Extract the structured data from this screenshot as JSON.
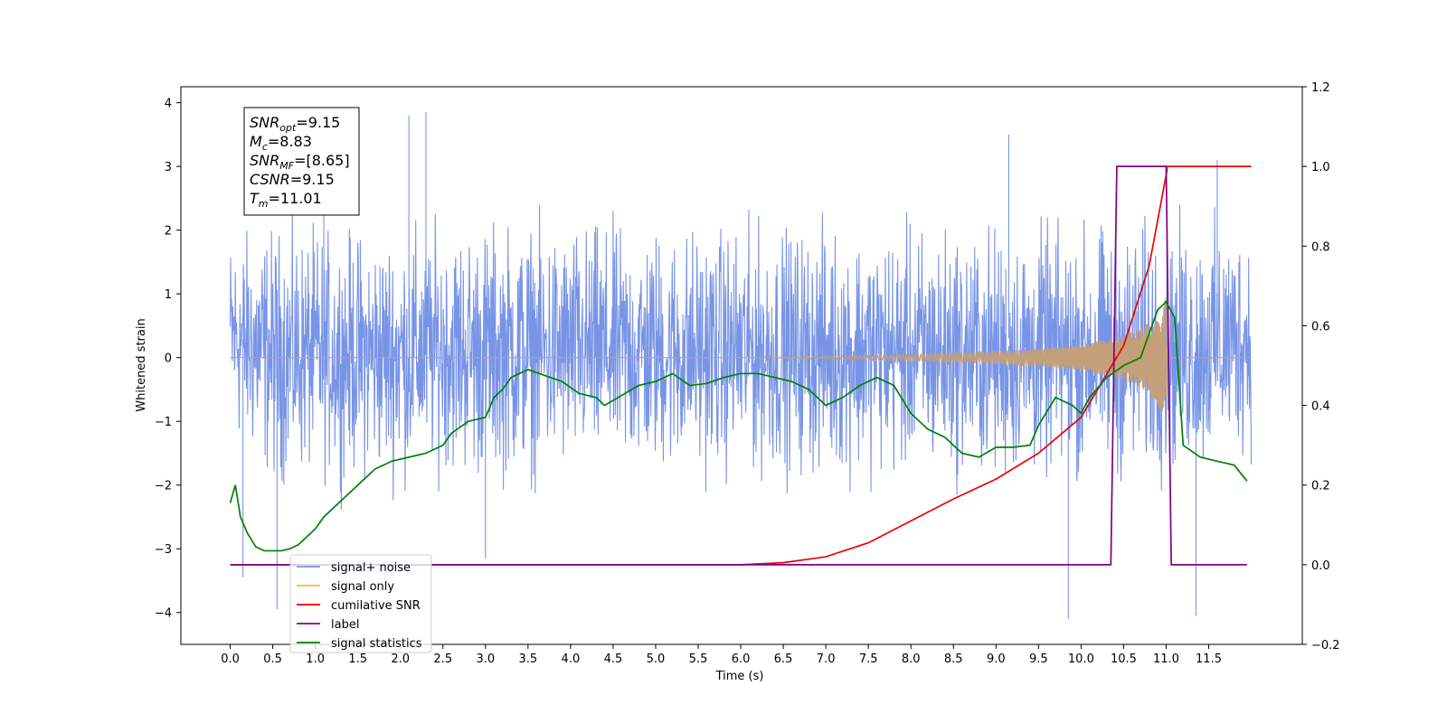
{
  "chart_data": {
    "type": "line",
    "xlabel": "Time (s)",
    "ylabel": "Whitened strain",
    "xlim": [
      -0.58,
      12.6
    ],
    "ylim": [
      -4.5,
      4.25
    ],
    "y2lim": [
      -0.2,
      1.2
    ],
    "xticks": [
      "0.0",
      "0.5",
      "1.0",
      "1.5",
      "2.0",
      "2.5",
      "3.0",
      "3.5",
      "4.0",
      "4.5",
      "5.0",
      "5.5",
      "6.0",
      "6.5",
      "7.0",
      "7.5",
      "8.0",
      "8.5",
      "9.0",
      "9.5",
      "10.0",
      "10.5",
      "11.0",
      "11.5"
    ],
    "yticks": [
      "4",
      "3",
      "2",
      "1",
      "0",
      "−1",
      "−2",
      "−3",
      "−4"
    ],
    "y2ticks": [
      "1.2",
      "1.0",
      "0.8",
      "0.6",
      "0.4",
      "0.2",
      "0.0",
      "−0.2"
    ],
    "grid": false,
    "legend_position": "lower-left",
    "annotation": {
      "lines": [
        {
          "italic": "SNR",
          "sub": "opt",
          "rest": "=9.15"
        },
        {
          "italic": "M",
          "sub": "c",
          "rest": "=8.83"
        },
        {
          "italic": "SNR",
          "sub": "MF",
          "rest": "=[8.65]"
        },
        {
          "italic": "CSNR",
          "sub": "",
          "rest": "=9.15"
        },
        {
          "italic": "T",
          "sub": "m",
          "rest": "=11.01"
        }
      ]
    },
    "series": [
      {
        "name": "signal+ noise",
        "color": "#7894e6",
        "axis": "left",
        "kind": "noise",
        "x_range": [
          0.0,
          12.0
        ],
        "envelope_upper": [
          [
            0.0,
            2.4
          ],
          [
            0.5,
            2.6
          ],
          [
            1.0,
            2.5
          ],
          [
            1.5,
            2.5
          ],
          [
            2.0,
            2.6
          ],
          [
            2.5,
            2.6
          ],
          [
            3.0,
            2.7
          ],
          [
            4.0,
            2.6
          ],
          [
            5.0,
            2.6
          ],
          [
            6.0,
            2.6
          ],
          [
            7.0,
            2.6
          ],
          [
            8.0,
            2.6
          ],
          [
            9.0,
            2.6
          ],
          [
            10.0,
            2.6
          ],
          [
            11.0,
            2.7
          ],
          [
            12.0,
            2.6
          ]
        ],
        "envelope_lower": [
          [
            0.0,
            -1.7
          ],
          [
            0.5,
            -2.5
          ],
          [
            1.0,
            -2.4
          ],
          [
            1.5,
            -2.4
          ],
          [
            2.0,
            -2.5
          ],
          [
            2.5,
            -2.3
          ],
          [
            3.0,
            -2.5
          ],
          [
            4.0,
            -2.4
          ],
          [
            5.0,
            -2.4
          ],
          [
            6.0,
            -2.4
          ],
          [
            7.0,
            -2.4
          ],
          [
            8.0,
            -2.4
          ],
          [
            9.0,
            -2.5
          ],
          [
            10.0,
            -2.4
          ],
          [
            11.0,
            -2.5
          ],
          [
            12.0,
            -2.0
          ]
        ],
        "spikes": [
          [
            0.55,
            -3.95
          ],
          [
            0.15,
            -3.45
          ],
          [
            1.1,
            3.3
          ],
          [
            2.1,
            3.8
          ],
          [
            2.3,
            3.85
          ],
          [
            3.0,
            -3.15
          ],
          [
            9.15,
            3.5
          ],
          [
            9.85,
            -4.1
          ],
          [
            11.35,
            -4.05
          ],
          [
            11.6,
            3.1
          ]
        ]
      },
      {
        "name": "signal only",
        "color": "#ffb347",
        "axis": "left",
        "kind": "chirp",
        "amplitude": [
          [
            0.0,
            0.0
          ],
          [
            6.0,
            0.0
          ],
          [
            7.0,
            0.02
          ],
          [
            8.0,
            0.05
          ],
          [
            9.0,
            0.1
          ],
          [
            9.5,
            0.14
          ],
          [
            10.0,
            0.2
          ],
          [
            10.5,
            0.34
          ],
          [
            10.8,
            0.55
          ],
          [
            11.0,
            0.95
          ],
          [
            11.01,
            0.0
          ],
          [
            12.0,
            0.0
          ]
        ]
      },
      {
        "name": "cumilative SNR",
        "color": "#ee0000",
        "axis": "right",
        "points": [
          [
            0.0,
            0.0
          ],
          [
            6.0,
            0.0
          ],
          [
            6.5,
            0.005
          ],
          [
            7.0,
            0.02
          ],
          [
            7.5,
            0.055
          ],
          [
            8.0,
            0.11
          ],
          [
            8.5,
            0.165
          ],
          [
            9.0,
            0.215
          ],
          [
            9.5,
            0.28
          ],
          [
            10.0,
            0.37
          ],
          [
            10.5,
            0.55
          ],
          [
            10.8,
            0.75
          ],
          [
            11.01,
            0.99
          ],
          [
            11.01,
            1.0
          ],
          [
            11.05,
            1.0
          ],
          [
            12.0,
            1.0
          ]
        ]
      },
      {
        "name": "label",
        "color": "#800080",
        "axis": "right",
        "points": [
          [
            0.0,
            0.0
          ],
          [
            10.35,
            0.0
          ],
          [
            10.42,
            1.0
          ],
          [
            11.0,
            1.0
          ],
          [
            11.06,
            0.0
          ],
          [
            11.95,
            0.0
          ]
        ]
      },
      {
        "name": "signal statistics",
        "color": "#008000",
        "axis": "right",
        "points": [
          [
            0.0,
            0.155
          ],
          [
            0.06,
            0.2
          ],
          [
            0.12,
            0.12
          ],
          [
            0.2,
            0.08
          ],
          [
            0.3,
            0.045
          ],
          [
            0.4,
            0.035
          ],
          [
            0.5,
            0.035
          ],
          [
            0.6,
            0.035
          ],
          [
            0.7,
            0.04
          ],
          [
            0.8,
            0.05
          ],
          [
            0.9,
            0.07
          ],
          [
            1.0,
            0.09
          ],
          [
            1.1,
            0.12
          ],
          [
            1.3,
            0.16
          ],
          [
            1.5,
            0.2
          ],
          [
            1.7,
            0.24
          ],
          [
            1.9,
            0.26
          ],
          [
            2.1,
            0.27
          ],
          [
            2.3,
            0.28
          ],
          [
            2.5,
            0.3
          ],
          [
            2.6,
            0.33
          ],
          [
            2.8,
            0.36
          ],
          [
            3.0,
            0.37
          ],
          [
            3.1,
            0.42
          ],
          [
            3.2,
            0.44
          ],
          [
            3.3,
            0.47
          ],
          [
            3.5,
            0.49
          ],
          [
            3.7,
            0.475
          ],
          [
            3.9,
            0.46
          ],
          [
            4.1,
            0.43
          ],
          [
            4.3,
            0.42
          ],
          [
            4.4,
            0.4
          ],
          [
            4.6,
            0.425
          ],
          [
            4.8,
            0.45
          ],
          [
            5.0,
            0.46
          ],
          [
            5.1,
            0.47
          ],
          [
            5.2,
            0.48
          ],
          [
            5.4,
            0.45
          ],
          [
            5.6,
            0.455
          ],
          [
            5.8,
            0.47
          ],
          [
            6.0,
            0.48
          ],
          [
            6.2,
            0.48
          ],
          [
            6.4,
            0.47
          ],
          [
            6.6,
            0.46
          ],
          [
            6.8,
            0.44
          ],
          [
            7.0,
            0.4
          ],
          [
            7.2,
            0.42
          ],
          [
            7.4,
            0.45
          ],
          [
            7.6,
            0.47
          ],
          [
            7.8,
            0.45
          ],
          [
            8.0,
            0.38
          ],
          [
            8.2,
            0.34
          ],
          [
            8.4,
            0.32
          ],
          [
            8.6,
            0.28
          ],
          [
            8.8,
            0.27
          ],
          [
            9.0,
            0.295
          ],
          [
            9.2,
            0.295
          ],
          [
            9.4,
            0.3
          ],
          [
            9.5,
            0.35
          ],
          [
            9.7,
            0.42
          ],
          [
            9.9,
            0.4
          ],
          [
            10.0,
            0.38
          ],
          [
            10.1,
            0.42
          ],
          [
            10.3,
            0.47
          ],
          [
            10.5,
            0.5
          ],
          [
            10.7,
            0.52
          ],
          [
            10.9,
            0.64
          ],
          [
            11.0,
            0.66
          ],
          [
            11.1,
            0.62
          ],
          [
            11.2,
            0.3
          ],
          [
            11.4,
            0.27
          ],
          [
            11.6,
            0.26
          ],
          [
            11.8,
            0.25
          ],
          [
            11.95,
            0.21
          ]
        ]
      }
    ]
  }
}
